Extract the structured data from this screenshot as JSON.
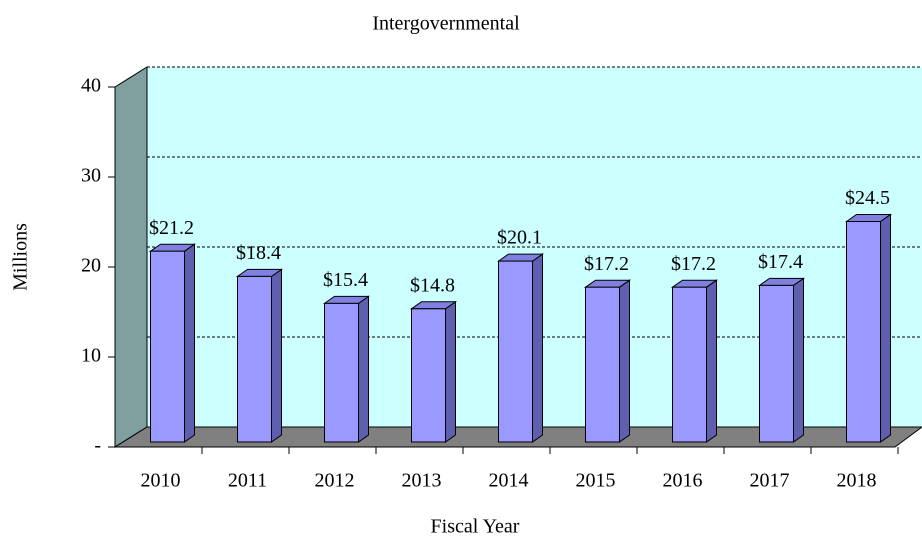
{
  "chart_data": {
    "type": "bar",
    "title": "Intergovernmental",
    "x_label": "Fiscal Year",
    "y_label": "Millions",
    "categories": [
      "2010",
      "2011",
      "2012",
      "2013",
      "2014",
      "2015",
      "2016",
      "2017",
      "2018"
    ],
    "values": [
      21.2,
      18.4,
      15.4,
      14.8,
      20.1,
      17.2,
      17.2,
      17.4,
      24.5
    ],
    "value_labels": [
      "$21.2",
      "$18.4",
      "$15.4",
      "$14.8",
      "$20.1",
      "$17.2",
      "$17.2",
      "$17.4",
      "$24.5"
    ],
    "color": "#9999ff",
    "ylim": [
      0,
      40
    ],
    "yticks": [
      {
        "value": 0,
        "label": "-"
      },
      10,
      20,
      30,
      40
    ],
    "grid": true
  }
}
